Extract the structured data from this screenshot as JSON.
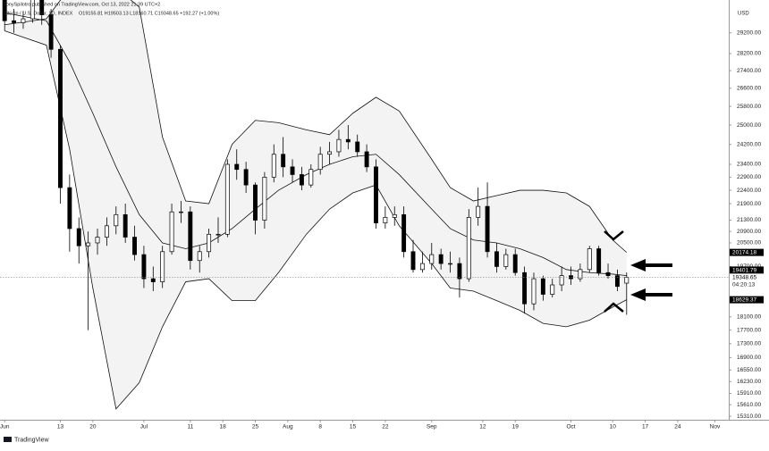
{
  "header": {
    "publisher": "TonySpilotro published on TradingView.com, Oct 13, 2022 21:39 UTC+2",
    "symbol": "Bitcoin / U.S. Dollar, 1D, INDEX",
    "ohlc": "O19155.81 H19503.13 L18160.71 C19348.65 +192.27 (+1.00%)",
    "brand": "TradingView"
  },
  "chart_data": {
    "type": "candlestick",
    "currency": "USD",
    "log_scale": true,
    "grid": false,
    "up_color": "#ffffff",
    "down_color": "#000000",
    "band_color": "#f3f3f3",
    "countdown": "04:20:13",
    "xlim": [
      "05-31",
      "11-04"
    ],
    "xticks": [
      {
        "value": "06-01",
        "label": "Jun"
      },
      {
        "value": "06-13",
        "label": "13"
      },
      {
        "value": "06-20",
        "label": "20"
      },
      {
        "value": "07-01",
        "label": "Jul"
      },
      {
        "value": "07-11",
        "label": "11"
      },
      {
        "value": "07-18",
        "label": "18"
      },
      {
        "value": "07-25",
        "label": "25"
      },
      {
        "value": "08-01",
        "label": "Aug"
      },
      {
        "value": "08-08",
        "label": "8"
      },
      {
        "value": "08-15",
        "label": "15"
      },
      {
        "value": "08-22",
        "label": "22"
      },
      {
        "value": "09-01",
        "label": "Sep"
      },
      {
        "value": "09-12",
        "label": "12"
      },
      {
        "value": "09-19",
        "label": "19"
      },
      {
        "value": "10-01",
        "label": "Oct"
      },
      {
        "value": "10-10",
        "label": "10"
      },
      {
        "value": "10-17",
        "label": "17"
      },
      {
        "value": "10-24",
        "label": "24"
      },
      {
        "value": "11-01",
        "label": "Nov"
      }
    ],
    "ylim": [
      15220,
      30400
    ],
    "yticks": [
      {
        "value": 29200,
        "label": "29200.00"
      },
      {
        "value": 28200,
        "label": "28200.00"
      },
      {
        "value": 27400,
        "label": "27400.00"
      },
      {
        "value": 26600,
        "label": "26600.00"
      },
      {
        "value": 25800,
        "label": "25800.00"
      },
      {
        "value": 25000,
        "label": "25000.00"
      },
      {
        "value": 24200,
        "label": "24200.00"
      },
      {
        "value": 23400,
        "label": "23400.00"
      },
      {
        "value": 22900,
        "label": "22900.00"
      },
      {
        "value": 22400,
        "label": "22400.00"
      },
      {
        "value": 21900,
        "label": "21900.00"
      },
      {
        "value": 21300,
        "label": "21300.00"
      },
      {
        "value": 20900,
        "label": "20900.00"
      },
      {
        "value": 20500,
        "label": "20500.00"
      },
      {
        "value": 19700,
        "label": "19700.00"
      },
      {
        "value": 18100,
        "label": "18100.00"
      },
      {
        "value": 17700,
        "label": "17700.00"
      },
      {
        "value": 17300,
        "label": "17300.00"
      },
      {
        "value": 16900,
        "label": "16900.00"
      },
      {
        "value": 16550,
        "label": "16550.00"
      },
      {
        "value": 16230,
        "label": "16230.00"
      },
      {
        "value": 15910,
        "label": "15910.00"
      },
      {
        "value": 15610,
        "label": "15610.00"
      },
      {
        "value": 15310,
        "label": "15310.00"
      }
    ],
    "x": [
      "06-01",
      "06-03",
      "06-05",
      "06-07",
      "06-09",
      "06-11",
      "06-13",
      "06-15",
      "06-17",
      "06-19",
      "06-21",
      "06-23",
      "06-25",
      "06-27",
      "06-29",
      "07-01",
      "07-03",
      "07-05",
      "07-07",
      "07-09",
      "07-11",
      "07-13",
      "07-15",
      "07-17",
      "07-19",
      "07-21",
      "07-23",
      "07-25",
      "07-27",
      "07-29",
      "07-31",
      "08-02",
      "08-04",
      "08-06",
      "08-08",
      "08-10",
      "08-12",
      "08-14",
      "08-16",
      "08-18",
      "08-20",
      "08-22",
      "08-24",
      "08-26",
      "08-28",
      "08-30",
      "09-01",
      "09-03",
      "09-05",
      "09-07",
      "09-09",
      "09-11",
      "09-13",
      "09-15",
      "09-17",
      "09-19",
      "09-21",
      "09-23",
      "09-25",
      "09-27",
      "09-29",
      "10-01",
      "10-03",
      "10-05",
      "10-07",
      "10-09",
      "10-11",
      "10-13"
    ],
    "open": [
      31700,
      29800,
      29700,
      29900,
      31300,
      30100,
      28400,
      22500,
      21000,
      20400,
      20500,
      20700,
      21100,
      21500,
      20700,
      20100,
      19300,
      19200,
      20200,
      21600,
      21600,
      19900,
      20200,
      20800,
      20800,
      23400,
      23200,
      22600,
      21300,
      22900,
      23800,
      23300,
      23000,
      22600,
      23200,
      23800,
      23900,
      24400,
      24300,
      23900,
      23300,
      21200,
      21400,
      21500,
      20200,
      19600,
      19800,
      20100,
      19800,
      19800,
      19300,
      21400,
      21800,
      20200,
      19700,
      20100,
      19500,
      18500,
      19300,
      18800,
      19100,
      19400,
      19300,
      19600,
      20300,
      19500,
      19400,
      19155.81
    ],
    "high": [
      32100,
      30400,
      30300,
      31600,
      31800,
      30400,
      28600,
      23000,
      21400,
      20900,
      21000,
      21400,
      21800,
      21900,
      21100,
      20400,
      19700,
      20400,
      21900,
      22000,
      21800,
      20400,
      21000,
      21400,
      23600,
      24000,
      23500,
      22700,
      23100,
      24200,
      24500,
      23600,
      23300,
      23400,
      24100,
      24300,
      24800,
      25000,
      24600,
      24200,
      23600,
      21800,
      21800,
      21800,
      20600,
      20200,
      20500,
      20300,
      20200,
      20000,
      21700,
      22500,
      22700,
      20500,
      20300,
      20300,
      19700,
      19500,
      19400,
      19300,
      19700,
      19700,
      19800,
      20400,
      20400,
      19800,
      19600,
      19503.13
    ],
    "low": [
      29300,
      29200,
      29400,
      29700,
      29600,
      28000,
      21900,
      20200,
      19800,
      17700,
      20100,
      20400,
      20800,
      20500,
      19900,
      19000,
      18900,
      19000,
      20100,
      21200,
      19600,
      19500,
      20000,
      20500,
      20700,
      22800,
      22300,
      20800,
      21000,
      22700,
      22900,
      22700,
      22400,
      22500,
      23000,
      23400,
      23700,
      24000,
      23700,
      23100,
      21000,
      21000,
      21100,
      20000,
      19500,
      19500,
      19600,
      19600,
      19500,
      18700,
      19200,
      21100,
      20000,
      19500,
      19600,
      19400,
      18200,
      18300,
      18600,
      18700,
      18900,
      19100,
      19200,
      19500,
      19400,
      19300,
      18900,
      18160.71
    ],
    "close": [
      29800,
      29700,
      29900,
      31300,
      30100,
      28400,
      22500,
      21000,
      20400,
      20500,
      20700,
      21100,
      21500,
      20700,
      20100,
      19300,
      19200,
      20200,
      21600,
      21600,
      19900,
      20200,
      20800,
      20800,
      23400,
      23200,
      22600,
      21300,
      22900,
      23800,
      23300,
      23000,
      22600,
      23200,
      23800,
      23900,
      24400,
      24300,
      23900,
      23300,
      21200,
      21400,
      21500,
      20200,
      19600,
      19800,
      20100,
      19800,
      19800,
      19300,
      21400,
      21800,
      20200,
      19700,
      20100,
      19500,
      18500,
      19300,
      18800,
      19100,
      19400,
      19300,
      19600,
      20300,
      19500,
      19400,
      19050,
      19348.65
    ],
    "bands": {
      "x": [
        "06-01",
        "06-10",
        "06-15",
        "06-20",
        "06-25",
        "06-30",
        "07-05",
        "07-10",
        "07-15",
        "07-20",
        "07-25",
        "07-30",
        "08-05",
        "08-10",
        "08-15",
        "08-20",
        "08-25",
        "09-01",
        "09-05",
        "09-10",
        "09-15",
        "09-20",
        "09-25",
        "09-30",
        "10-05",
        "10-10",
        "10-13"
      ],
      "upper": [
        29600,
        29900,
        31500,
        32000,
        31500,
        30500,
        24500,
        22000,
        21900,
        24200,
        25200,
        25100,
        24800,
        24600,
        25500,
        26200,
        25600,
        23600,
        22500,
        22000,
        22200,
        22400,
        22400,
        22300,
        21800,
        20600,
        20174.18
      ],
      "middle": [
        30200,
        29800,
        27800,
        25500,
        23300,
        21500,
        20500,
        20300,
        20500,
        21000,
        21700,
        22400,
        23000,
        23400,
        23700,
        23800,
        23000,
        21700,
        21000,
        20600,
        20500,
        20300,
        20000,
        19600,
        19500,
        19450,
        19401.79
      ],
      "lower": [
        29300,
        28600,
        24000,
        19000,
        15500,
        16200,
        17800,
        19200,
        19300,
        18600,
        18600,
        19500,
        20800,
        21700,
        22300,
        22600,
        21100,
        19800,
        19000,
        18900,
        18600,
        18300,
        17900,
        17800,
        18000,
        18400,
        18629.37
      ]
    }
  }
}
